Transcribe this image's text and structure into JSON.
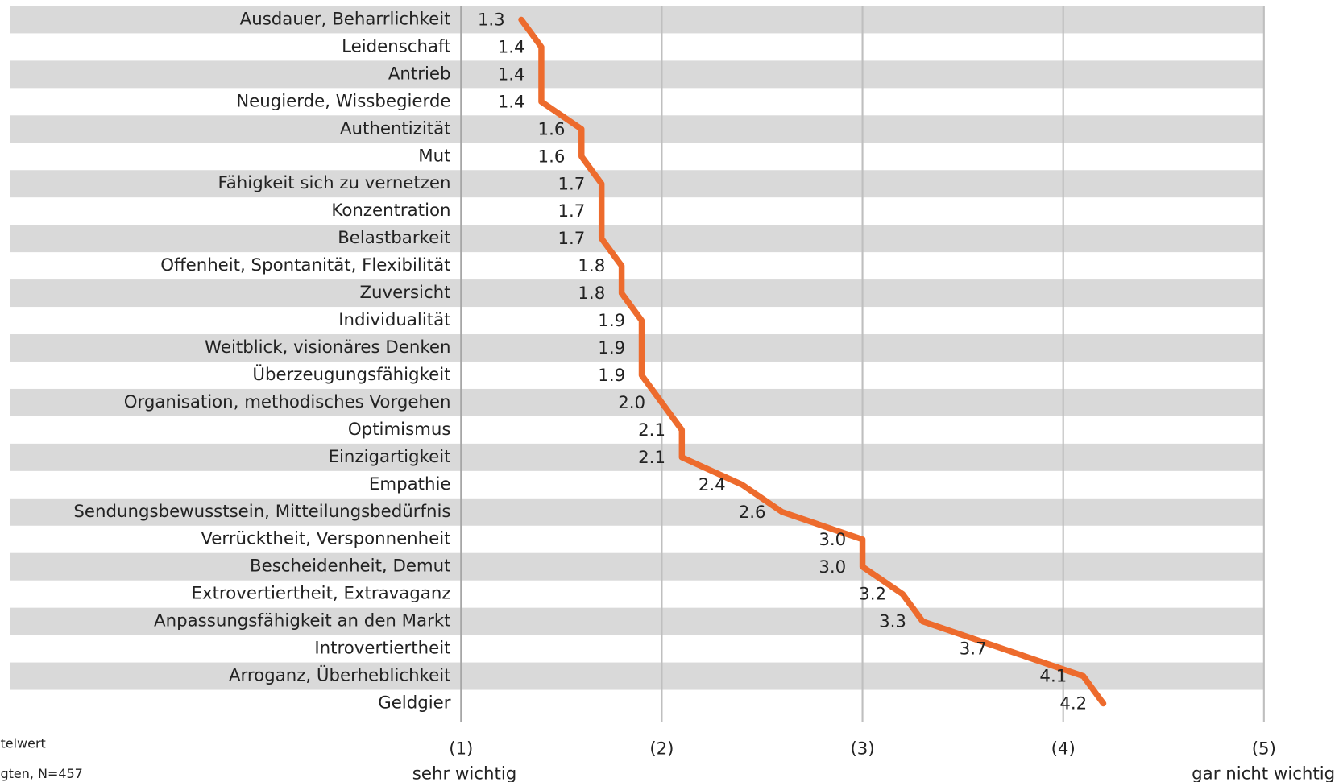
{
  "chart_data": {
    "type": "line",
    "orientation": "horizontal",
    "categories": [
      "Ausdauer, Beharrlichkeit",
      "Leidenschaft",
      "Antrieb",
      "Neugierde, Wissbegierde",
      "Authentizität",
      "Mut",
      "Fähigkeit sich zu vernetzen",
      "Konzentration",
      "Belastbarkeit",
      "Offenheit, Spontanität, Flexibilität",
      "Zuversicht",
      "Individualität",
      "Weitblick, visionäres Denken",
      "Überzeugungsfähigkeit",
      "Organisation, methodisches Vorgehen",
      "Optimismus",
      "Einzigartigkeit",
      "Empathie",
      "Sendungsbewusstsein, Mitteilungsbedürfnis",
      "Verrücktheit, Versponnenheit",
      "Bescheidenheit, Demut",
      "Extrovertiertheit, Extravaganz",
      "Anpassungsfähigkeit an den Markt",
      "Introvertiertheit",
      "Arroganz, Überheblichkeit",
      "Geldgier"
    ],
    "series": [
      {
        "name": "Mittelwert",
        "color": "#ed6b2d",
        "values": [
          1.3,
          1.4,
          1.4,
          1.4,
          1.6,
          1.6,
          1.7,
          1.7,
          1.7,
          1.8,
          1.8,
          1.9,
          1.9,
          1.9,
          2.0,
          2.1,
          2.1,
          2.4,
          2.6,
          3.0,
          3.0,
          3.2,
          3.3,
          3.7,
          4.1,
          4.2
        ],
        "value_labels": [
          "1.3",
          "1.4",
          "1.4",
          "1.4",
          "1.6",
          "1.6",
          "1.7",
          "1.7",
          "1.7",
          "1.8",
          "1.8",
          "1.9",
          "1.9",
          "1.9",
          "2.0",
          "2.1",
          "2.1",
          "2.4",
          "2.6",
          "3.0",
          "3.0",
          "3.2",
          "3.3",
          "3.7",
          "4.1",
          "4.2"
        ]
      }
    ],
    "xlim": [
      1,
      5
    ],
    "xticks": [
      {
        "value": 1,
        "label": "(1)"
      },
      {
        "value": 2,
        "label": "(2)"
      },
      {
        "value": 3,
        "label": "(3)"
      },
      {
        "value": 4,
        "label": "(4)"
      },
      {
        "value": 5,
        "label": "(5)"
      }
    ],
    "x_low_label": "sehr wichtig",
    "x_high_label": "gar nicht wichtig",
    "notes": [
      "telwert",
      "gten, N=457"
    ],
    "grid": true,
    "band_color": "#d9d9d9"
  }
}
